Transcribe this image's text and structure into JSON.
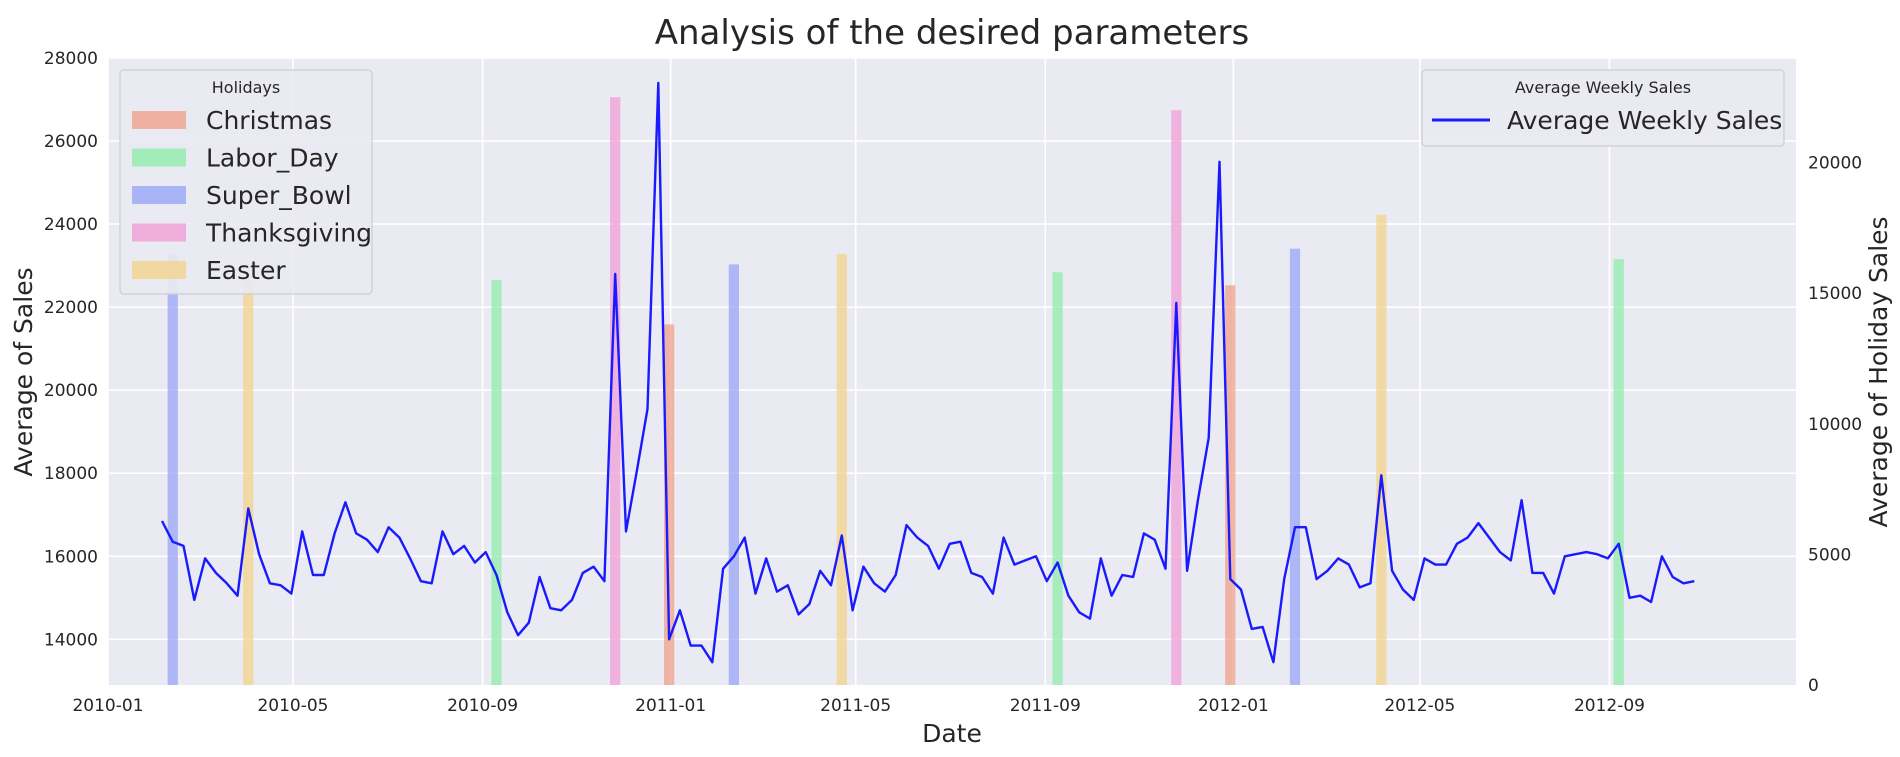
{
  "chart_data": {
    "type": "line",
    "title": "Analysis of the desired parameters",
    "xlabel": "Date",
    "ylabel": "Average of Sales",
    "y2label": "Average of Holiday Sales",
    "xlim": [
      "2010-01-01",
      "2012-12-31"
    ],
    "ylim": [
      12900,
      28000
    ],
    "y2lim": [
      0,
      24000
    ],
    "grid": true,
    "x_ticks": [
      "2010-01",
      "2010-05",
      "2010-09",
      "2011-01",
      "2011-05",
      "2011-09",
      "2012-01",
      "2012-05",
      "2012-09"
    ],
    "y_ticks": [
      14000,
      16000,
      18000,
      20000,
      22000,
      24000,
      26000,
      28000
    ],
    "y2_ticks": [
      0,
      5000,
      10000,
      15000,
      20000
    ],
    "series": [
      {
        "name": "Average Weekly Sales",
        "color": "#1a1aff",
        "x": [
          "2010-02-05",
          "2010-02-12",
          "2010-02-19",
          "2010-02-26",
          "2010-03-05",
          "2010-03-12",
          "2010-03-19",
          "2010-03-26",
          "2010-04-02",
          "2010-04-09",
          "2010-04-16",
          "2010-04-23",
          "2010-04-30",
          "2010-05-07",
          "2010-05-14",
          "2010-05-21",
          "2010-05-28",
          "2010-06-04",
          "2010-06-11",
          "2010-06-18",
          "2010-06-25",
          "2010-07-02",
          "2010-07-09",
          "2010-07-16",
          "2010-07-23",
          "2010-07-30",
          "2010-08-06",
          "2010-08-13",
          "2010-08-20",
          "2010-08-27",
          "2010-09-03",
          "2010-09-10",
          "2010-09-17",
          "2010-09-24",
          "2010-10-01",
          "2010-10-08",
          "2010-10-15",
          "2010-10-22",
          "2010-10-29",
          "2010-11-05",
          "2010-11-12",
          "2010-11-19",
          "2010-11-26",
          "2010-12-03",
          "2010-12-10",
          "2010-12-17",
          "2010-12-24",
          "2010-12-31",
          "2011-01-07",
          "2011-01-14",
          "2011-01-21",
          "2011-01-28",
          "2011-02-04",
          "2011-02-11",
          "2011-02-18",
          "2011-02-25",
          "2011-03-04",
          "2011-03-11",
          "2011-03-18",
          "2011-03-25",
          "2011-04-01",
          "2011-04-08",
          "2011-04-15",
          "2011-04-22",
          "2011-04-29",
          "2011-05-06",
          "2011-05-13",
          "2011-05-20",
          "2011-05-27",
          "2011-06-03",
          "2011-06-10",
          "2011-06-17",
          "2011-06-24",
          "2011-07-01",
          "2011-07-08",
          "2011-07-15",
          "2011-07-22",
          "2011-07-29",
          "2011-08-05",
          "2011-08-12",
          "2011-08-19",
          "2011-08-26",
          "2011-09-02",
          "2011-09-09",
          "2011-09-16",
          "2011-09-23",
          "2011-09-30",
          "2011-10-07",
          "2011-10-14",
          "2011-10-21",
          "2011-10-28",
          "2011-11-04",
          "2011-11-11",
          "2011-11-18",
          "2011-11-25",
          "2011-12-02",
          "2011-12-09",
          "2011-12-16",
          "2011-12-23",
          "2011-12-30",
          "2012-01-06",
          "2012-01-13",
          "2012-01-20",
          "2012-01-27",
          "2012-02-03",
          "2012-02-10",
          "2012-02-17",
          "2012-02-24",
          "2012-03-02",
          "2012-03-09",
          "2012-03-16",
          "2012-03-23",
          "2012-03-30",
          "2012-04-06",
          "2012-04-13",
          "2012-04-20",
          "2012-04-27",
          "2012-05-04",
          "2012-05-11",
          "2012-05-18",
          "2012-05-25",
          "2012-06-01",
          "2012-06-08",
          "2012-06-15",
          "2012-06-22",
          "2012-06-29",
          "2012-07-06",
          "2012-07-13",
          "2012-07-20",
          "2012-07-27",
          "2012-08-03",
          "2012-08-10",
          "2012-08-17",
          "2012-08-24",
          "2012-08-31",
          "2012-09-07",
          "2012-09-14",
          "2012-09-21",
          "2012-09-28",
          "2012-10-05",
          "2012-10-12",
          "2012-10-19",
          "2012-10-26"
        ],
        "values": [
          16850,
          16350,
          16250,
          14950,
          15950,
          15600,
          15350,
          15050,
          17150,
          16050,
          15350,
          15300,
          15100,
          16600,
          15550,
          15550,
          16550,
          17300,
          16550,
          16400,
          16100,
          16700,
          16450,
          15950,
          15400,
          15350,
          16600,
          16050,
          16250,
          15850,
          16100,
          15550,
          14650,
          14100,
          14400,
          15500,
          14750,
          14700,
          14950,
          15600,
          15750,
          15400,
          22800,
          16600,
          18050,
          19550,
          27400,
          14000,
          14700,
          13850,
          13850,
          13450,
          15700,
          16000,
          16450,
          15100,
          15950,
          15150,
          15300,
          14600,
          14850,
          15650,
          15300,
          16500,
          14700,
          15750,
          15350,
          15150,
          15550,
          16750,
          16450,
          16250,
          15700,
          16300,
          16350,
          15600,
          15500,
          15100,
          16450,
          15800,
          15900,
          16000,
          15400,
          15850,
          15050,
          14650,
          14500,
          15950,
          15050,
          15550,
          15500,
          16550,
          16400,
          15700,
          22100,
          15650,
          17350,
          18850,
          25500,
          15450,
          15200,
          14250,
          14300,
          13450,
          15450,
          16700,
          16700,
          15450,
          15650,
          15950,
          15800,
          15250,
          15350,
          17950,
          15650,
          15200,
          14950,
          15950,
          15800,
          15800,
          16300,
          16450,
          16800,
          16450,
          16100,
          15900,
          17350,
          15600,
          15600,
          15100,
          16000,
          16050,
          16100,
          16050,
          15950,
          16300,
          15000,
          15050,
          14900,
          16000,
          15500,
          15350,
          15400
        ]
      }
    ],
    "holidays": {
      "title": "Holidays",
      "categories": [
        {
          "name": "Christmas",
          "color": "#f0a08c",
          "dates": [
            "2010-12-31",
            "2011-12-30"
          ],
          "values": [
            13800,
            15300
          ]
        },
        {
          "name": "Labor_Day",
          "color": "#90ecaa",
          "dates": [
            "2010-09-10",
            "2011-09-09",
            "2012-09-07"
          ],
          "values": [
            15500,
            15800,
            16300
          ]
        },
        {
          "name": "Super_Bowl",
          "color": "#99a6f7",
          "dates": [
            "2010-02-12",
            "2011-02-11",
            "2012-02-10"
          ],
          "values": [
            16500,
            16100,
            16700
          ]
        },
        {
          "name": "Thanksgiving",
          "color": "#f09ed6",
          "dates": [
            "2010-11-26",
            "2011-11-25"
          ],
          "values": [
            22500,
            22000
          ]
        },
        {
          "name": "Easter",
          "color": "#f3d38c",
          "dates": [
            "2010-04-02",
            "2011-04-22",
            "2012-04-06"
          ],
          "values": [
            15600,
            16500,
            18000
          ]
        }
      ]
    },
    "legend_sales": {
      "title": "Average Weekly Sales",
      "label": "Average Weekly Sales",
      "placement": "top-right"
    },
    "legend_holidays_placement": "top-left"
  }
}
